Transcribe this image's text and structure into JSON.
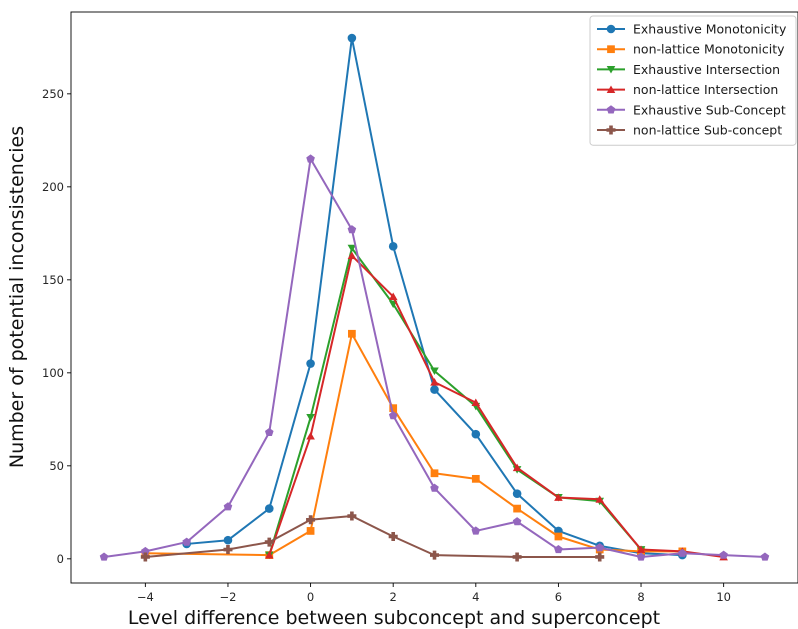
{
  "chart_data": {
    "type": "line",
    "title": "",
    "xlabel": "Level difference between subconcept and superconcept",
    "ylabel": "Number of potential inconsistencies",
    "xlim": [
      -5.8,
      11.8
    ],
    "ylim": [
      -13,
      294
    ],
    "xticks": [
      -4,
      -2,
      0,
      2,
      4,
      6,
      8,
      10
    ],
    "yticks": [
      0,
      50,
      100,
      150,
      200,
      250
    ],
    "xtick_labels": [
      "−4",
      "−2",
      "0",
      "2",
      "4",
      "6",
      "8",
      "10"
    ],
    "ytick_labels": [
      "0",
      "50",
      "100",
      "150",
      "200",
      "250"
    ],
    "grid": false,
    "legend_position": "top-right",
    "series": [
      {
        "name": "Exhaustive Monotonicity",
        "color": "#1f77b4",
        "marker": "circle",
        "x": [
          -3,
          -2,
          -1,
          0,
          1,
          2,
          3,
          4,
          5,
          6,
          7,
          8,
          9
        ],
        "y": [
          8,
          10,
          27,
          105,
          280,
          168,
          91,
          67,
          35,
          15,
          7,
          3,
          2
        ]
      },
      {
        "name": "non-lattice Monotonicity",
        "color": "#ff7f0e",
        "marker": "square",
        "x": [
          -4,
          -1,
          0,
          1,
          2,
          3,
          4,
          5,
          6,
          7,
          8,
          9
        ],
        "y": [
          3,
          2,
          15,
          121,
          81,
          46,
          43,
          27,
          12,
          5,
          4,
          4
        ]
      },
      {
        "name": "Exhaustive Intersection",
        "color": "#2ca02c",
        "marker": "triangle-down",
        "x": [
          -1,
          0,
          1,
          2,
          3,
          4,
          5,
          6,
          7,
          8
        ],
        "y": [
          2,
          76,
          167,
          137,
          101,
          82,
          48,
          33,
          31,
          5
        ]
      },
      {
        "name": "non-lattice Intersection",
        "color": "#d62728",
        "marker": "triangle-up",
        "x": [
          -1,
          0,
          1,
          2,
          3,
          4,
          5,
          6,
          7,
          8,
          9,
          10
        ],
        "y": [
          2,
          66,
          163,
          141,
          95,
          84,
          49,
          33,
          32,
          5,
          4,
          1
        ]
      },
      {
        "name": "Exhaustive Sub-Concept",
        "color": "#9467bd",
        "marker": "pentagon",
        "x": [
          -5,
          -4,
          -3,
          -2,
          -1,
          0,
          1,
          2,
          3,
          4,
          5,
          6,
          7,
          8,
          9,
          10,
          11
        ],
        "y": [
          1,
          4,
          9,
          28,
          68,
          215,
          177,
          77,
          38,
          15,
          20,
          5,
          6,
          1,
          3,
          2,
          1
        ]
      },
      {
        "name": "non-lattice Sub-concept",
        "color": "#8c564b",
        "marker": "plus",
        "x": [
          -4,
          -2,
          -1,
          0,
          1,
          2,
          3,
          5,
          7
        ],
        "y": [
          1,
          5,
          9,
          21,
          23,
          12,
          2,
          1,
          1
        ]
      }
    ]
  }
}
